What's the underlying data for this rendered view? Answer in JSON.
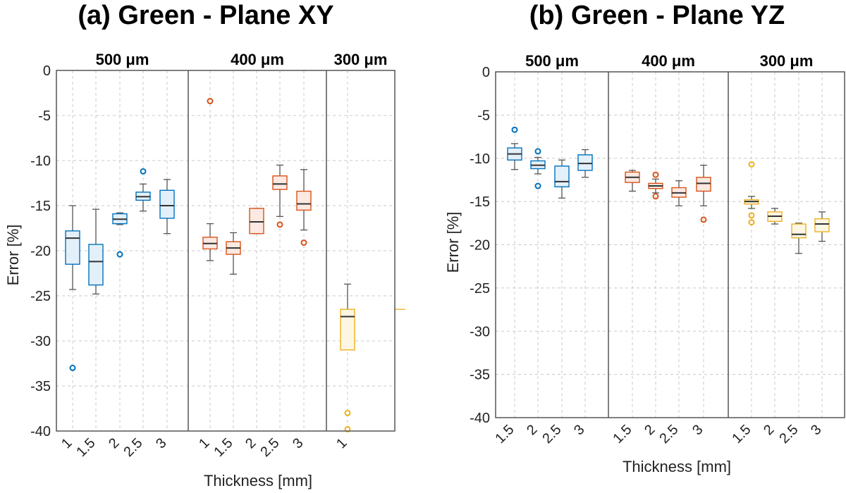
{
  "chart_data": [
    {
      "type": "box",
      "title": "(a) Green - Plane XY",
      "ylabel": "Error [%]",
      "xlabel": "Thickness [mm]",
      "ylim": [
        -40,
        0
      ],
      "yticks": [
        0,
        -5,
        -10,
        -15,
        -20,
        -25,
        -30,
        -35,
        -40
      ],
      "grid": true,
      "groups": [
        {
          "label": "500 μm",
          "color": "#0072BD",
          "fill": "#e3f0fa",
          "categories": [
            "1",
            "1.5",
            "2",
            "2.5",
            "3"
          ],
          "boxes": [
            {
              "x": "1",
              "q1": -21.5,
              "median": -18.6,
              "q3": -17.8,
              "whisker_low": -24.3,
              "whisker_high": -15.0,
              "outliers": [
                -33.0
              ]
            },
            {
              "x": "1.5",
              "q1": -23.8,
              "median": -21.2,
              "q3": -19.3,
              "whisker_low": -24.8,
              "whisker_high": -15.4,
              "outliers": []
            },
            {
              "x": "2",
              "q1": -17.0,
              "median": -16.5,
              "q3": -15.9,
              "whisker_low": -17.1,
              "whisker_high": -15.8,
              "outliers": [
                -20.4
              ]
            },
            {
              "x": "2.5",
              "q1": -14.4,
              "median": -14.0,
              "q3": -13.5,
              "whisker_low": -15.6,
              "whisker_high": -12.6,
              "outliers": [
                -11.2
              ]
            },
            {
              "x": "3",
              "q1": -16.4,
              "median": -15.0,
              "q3": -13.3,
              "whisker_low": -18.1,
              "whisker_high": -12.1,
              "outliers": []
            }
          ]
        },
        {
          "label": "400 μm",
          "color": "#D95319",
          "fill": "#fbe9e2",
          "categories": [
            "1",
            "1.5",
            "2",
            "2.5",
            "3"
          ],
          "boxes": [
            {
              "x": "1",
              "q1": -19.8,
              "median": -19.2,
              "q3": -18.5,
              "whisker_low": -21.1,
              "whisker_high": -17.0,
              "outliers": [
                -3.4
              ]
            },
            {
              "x": "1.5",
              "q1": -20.4,
              "median": -19.7,
              "q3": -19.0,
              "whisker_low": -22.6,
              "whisker_high": -18.0,
              "outliers": []
            },
            {
              "x": "2",
              "q1": -18.1,
              "median": -16.8,
              "q3": -15.3,
              "whisker_low": -18.1,
              "whisker_high": -15.3,
              "outliers": []
            },
            {
              "x": "2.5",
              "q1": -13.2,
              "median": -12.6,
              "q3": -11.7,
              "whisker_low": -16.2,
              "whisker_high": -10.5,
              "outliers": [
                -17.1
              ]
            },
            {
              "x": "3",
              "q1": -15.5,
              "median": -14.8,
              "q3": -13.4,
              "whisker_low": -17.7,
              "whisker_high": -11.0,
              "outliers": [
                -19.1
              ]
            }
          ]
        },
        {
          "label": "300 μm",
          "color": "#EDB120",
          "fill": "#fdf6e3",
          "categories": [
            "1"
          ],
          "boxes": [
            {
              "x": "1",
              "q1": -31.0,
              "median": -27.3,
              "q3": -26.5,
              "whisker_low": -31.0,
              "whisker_high": -23.7,
              "outliers": [
                -38.0,
                -39.8
              ]
            }
          ]
        }
      ]
    },
    {
      "type": "box",
      "title": "(b) Green - Plane YZ",
      "ylabel": "Error [%]",
      "xlabel": "Thickness [mm]",
      "ylim": [
        -40,
        0
      ],
      "yticks": [
        0,
        -5,
        -10,
        -15,
        -20,
        -25,
        -30,
        -35,
        -40
      ],
      "grid": true,
      "groups": [
        {
          "label": "500 μm",
          "color": "#0072BD",
          "fill": "#e3f0fa",
          "categories": [
            "1.5",
            "2",
            "2.5",
            "3"
          ],
          "boxes": [
            {
              "x": "1.5",
              "q1": -10.2,
              "median": -9.5,
              "q3": -8.8,
              "whisker_low": -11.3,
              "whisker_high": -8.3,
              "outliers": [
                -6.7
              ]
            },
            {
              "x": "2",
              "q1": -11.2,
              "median": -10.8,
              "q3": -10.3,
              "whisker_low": -11.8,
              "whisker_high": -9.9,
              "outliers": [
                -9.2,
                -13.2
              ]
            },
            {
              "x": "2.5",
              "q1": -13.3,
              "median": -12.7,
              "q3": -10.9,
              "whisker_low": -14.6,
              "whisker_high": -10.2,
              "outliers": []
            },
            {
              "x": "3",
              "q1": -11.4,
              "median": -10.6,
              "q3": -9.6,
              "whisker_low": -12.2,
              "whisker_high": -9.0,
              "outliers": []
            }
          ]
        },
        {
          "label": "400 μm",
          "color": "#D95319",
          "fill": "#fbe9e2",
          "categories": [
            "1.5",
            "2",
            "2.5",
            "3"
          ],
          "boxes": [
            {
              "x": "1.5",
              "q1": -12.8,
              "median": -12.2,
              "q3": -11.6,
              "whisker_low": -13.8,
              "whisker_high": -11.4,
              "outliers": []
            },
            {
              "x": "2",
              "q1": -13.5,
              "median": -13.2,
              "q3": -12.9,
              "whisker_low": -14.0,
              "whisker_high": -12.4,
              "outliers": [
                -11.9,
                -14.4
              ]
            },
            {
              "x": "2.5",
              "q1": -14.5,
              "median": -14.0,
              "q3": -13.4,
              "whisker_low": -15.5,
              "whisker_high": -12.6,
              "outliers": []
            },
            {
              "x": "3",
              "q1": -13.8,
              "median": -12.9,
              "q3": -12.2,
              "whisker_low": -15.5,
              "whisker_high": -10.8,
              "outliers": [
                -17.1
              ]
            }
          ]
        },
        {
          "label": "300 μm",
          "color": "#EDB120",
          "fill": "#fdf6e3",
          "categories": [
            "1.5",
            "2",
            "2.5",
            "3"
          ],
          "boxes": [
            {
              "x": "1.5",
              "q1": -15.3,
              "median": -15.0,
              "q3": -14.8,
              "whisker_low": -15.8,
              "whisker_high": -14.4,
              "outliers": [
                -10.7,
                -16.6,
                -17.4
              ]
            },
            {
              "x": "2",
              "q1": -17.3,
              "median": -16.7,
              "q3": -16.2,
              "whisker_low": -17.6,
              "whisker_high": -15.8,
              "outliers": []
            },
            {
              "x": "2.5",
              "q1": -19.2,
              "median": -18.8,
              "q3": -17.6,
              "whisker_low": -21.0,
              "whisker_high": -17.5,
              "outliers": []
            },
            {
              "x": "3",
              "q1": -18.5,
              "median": -17.6,
              "q3": -17.0,
              "whisker_low": -19.6,
              "whisker_high": -16.2,
              "outliers": []
            }
          ]
        }
      ]
    }
  ]
}
